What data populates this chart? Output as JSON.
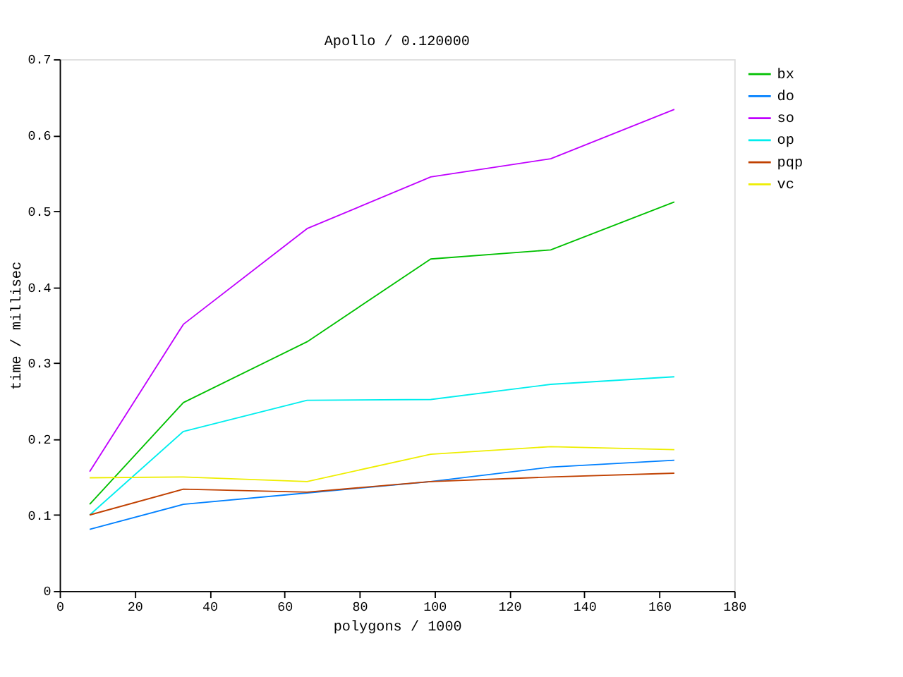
{
  "chart_data": {
    "type": "line",
    "title": "Apollo / 0.120000",
    "xlabel": "polygons / 1000",
    "ylabel": "time / millisec",
    "x": [
      8,
      33,
      66,
      99,
      131,
      164
    ],
    "series": [
      {
        "name": "bx",
        "color": "#00c000",
        "values": [
          0.114,
          0.248,
          0.328,
          0.437,
          0.449,
          0.512
        ]
      },
      {
        "name": "do",
        "color": "#0080ff",
        "values": [
          0.081,
          0.114,
          0.129,
          0.144,
          0.163,
          0.172
        ]
      },
      {
        "name": "so",
        "color": "#c000ff",
        "values": [
          0.157,
          0.351,
          0.477,
          0.545,
          0.569,
          0.634
        ]
      },
      {
        "name": "op",
        "color": "#00eeee",
        "values": [
          0.1,
          0.21,
          0.251,
          0.252,
          0.272,
          0.282
        ]
      },
      {
        "name": "pqp",
        "color": "#c04000",
        "values": [
          0.1,
          0.134,
          0.13,
          0.144,
          0.15,
          0.155
        ]
      },
      {
        "name": "vc",
        "color": "#eeee00",
        "values": [
          0.149,
          0.15,
          0.144,
          0.18,
          0.19,
          0.186
        ]
      }
    ],
    "xlim": [
      0,
      180
    ],
    "xticks": [
      0,
      20,
      40,
      60,
      80,
      100,
      120,
      140,
      160,
      180
    ],
    "ylim": [
      0,
      0.7
    ],
    "yticks": [
      {
        "value": 0,
        "label": "0"
      },
      0.1,
      0.2,
      0.3,
      0.4,
      0.5,
      0.6,
      0.7
    ],
    "grid": false,
    "legend": "top right",
    "marker": "none",
    "line_style": "solid"
  }
}
